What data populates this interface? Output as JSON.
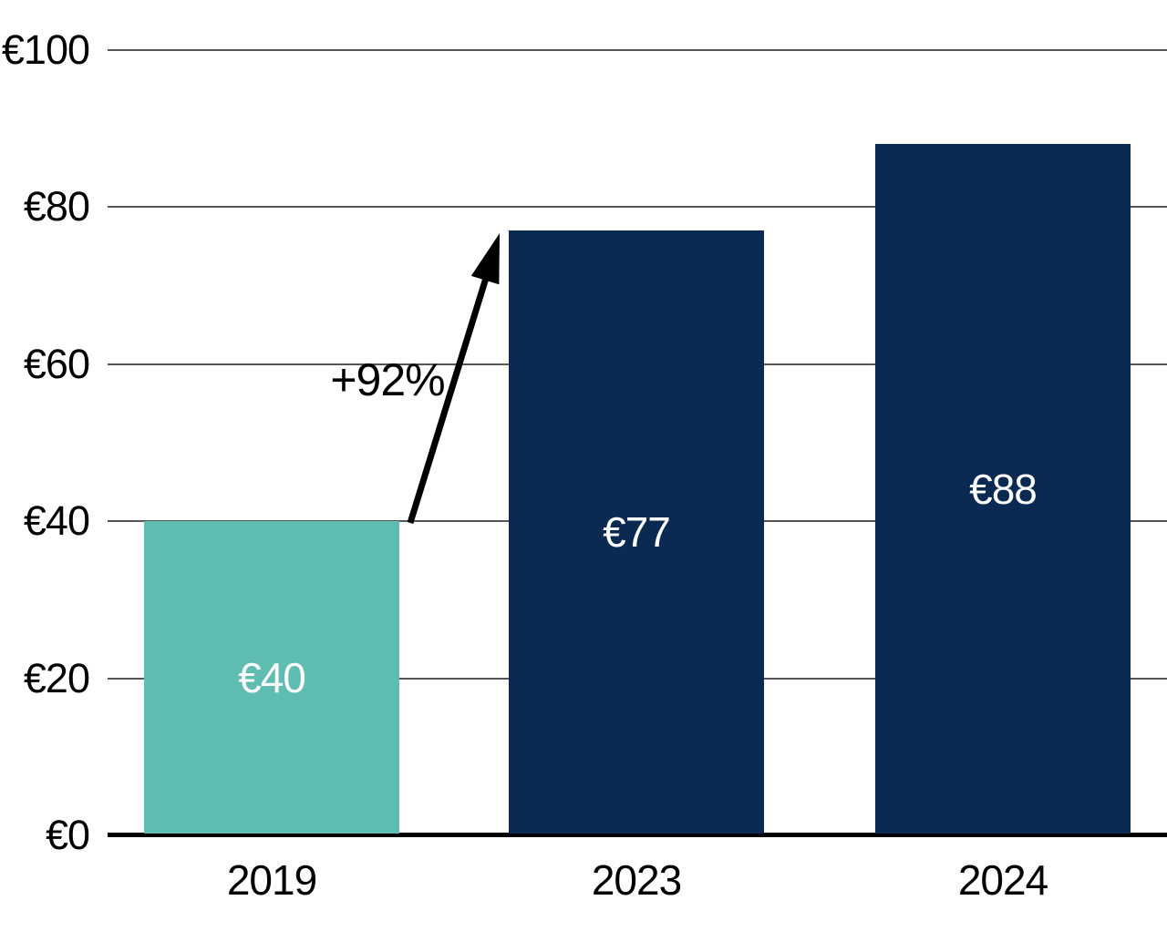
{
  "chart_data": {
    "type": "bar",
    "title": "",
    "xlabel": "",
    "ylabel": "",
    "categories": [
      "2019",
      "2023",
      "2024"
    ],
    "values": [
      40,
      77,
      88
    ],
    "value_labels": [
      "€40",
      "€77",
      "€88"
    ],
    "unit_prefix": "€",
    "ylim": [
      0,
      100
    ],
    "yticks": [
      {
        "value": 0,
        "label": "€0"
      },
      {
        "value": 20,
        "label": "€20"
      },
      {
        "value": 40,
        "label": "€40"
      },
      {
        "value": 60,
        "label": "€60"
      },
      {
        "value": 80,
        "label": "€80"
      },
      {
        "value": 100,
        "label": "€100"
      }
    ],
    "grid": "horizontal",
    "legend_position": "none",
    "bar_colors": [
      "#5EBCB1",
      "#0B2A52",
      "#0B2A52"
    ],
    "bar_label_color": "#FFFFFF",
    "annotation": {
      "label": "+92%",
      "from_category": "2019",
      "to_category": "2023"
    },
    "colors": {
      "background": "#FFFFFF",
      "axis_line": "#000000",
      "gridline": "#55555A",
      "tick_text": "#000000",
      "annotation_text": "#000000",
      "arrow": "#000000"
    }
  }
}
